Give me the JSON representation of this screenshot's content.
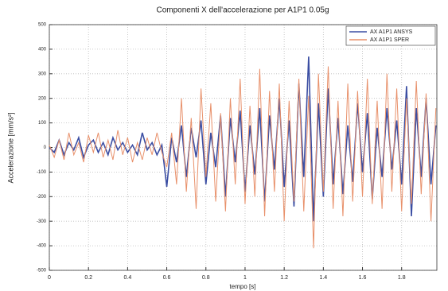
{
  "chart_data": {
    "type": "line",
    "title": "Componenti X dell'accelerazione per A1P1 0.05g",
    "x_label": "tempo [s]",
    "y_label": "Accelerazione [mm/s²]",
    "x": [
      0,
      0.025,
      0.05,
      0.075,
      0.1,
      0.125,
      0.15,
      0.175,
      0.2,
      0.225,
      0.25,
      0.275,
      0.3,
      0.325,
      0.35,
      0.375,
      0.4,
      0.425,
      0.45,
      0.475,
      0.5,
      0.525,
      0.55,
      0.575,
      0.6,
      0.625,
      0.65,
      0.675,
      0.7,
      0.725,
      0.75,
      0.775,
      0.8,
      0.825,
      0.85,
      0.875,
      0.9,
      0.925,
      0.95,
      0.975,
      1,
      1.025,
      1.05,
      1.075,
      1.1,
      1.125,
      1.15,
      1.175,
      1.2,
      1.225,
      1.25,
      1.275,
      1.3,
      1.325,
      1.35,
      1.375,
      1.4,
      1.425,
      1.45,
      1.475,
      1.5,
      1.525,
      1.55,
      1.575,
      1.6,
      1.625,
      1.65,
      1.675,
      1.7,
      1.725,
      1.75,
      1.775,
      1.8,
      1.825,
      1.85,
      1.875,
      1.9,
      1.925,
      1.95,
      1.975
    ],
    "series": [
      {
        "name": "AX A1P1 ANSYS",
        "color": "#3b4ea3",
        "values": [
          0,
          -20,
          30,
          -30,
          20,
          -10,
          40,
          -40,
          10,
          30,
          -20,
          20,
          -30,
          40,
          -10,
          20,
          -20,
          10,
          -30,
          60,
          -10,
          20,
          -30,
          10,
          -160,
          40,
          -60,
          90,
          -120,
          80,
          -40,
          110,
          -150,
          60,
          -80,
          130,
          -200,
          120,
          -60,
          150,
          -180,
          90,
          -110,
          160,
          -220,
          130,
          -90,
          200,
          -160,
          110,
          -240,
          260,
          -120,
          370,
          -300,
          180,
          -200,
          240,
          -150,
          120,
          -190,
          90,
          -140,
          180,
          -100,
          140,
          -210,
          80,
          -120,
          160,
          -90,
          110,
          -150,
          250,
          -280,
          160,
          -120,
          200,
          -150,
          90
        ]
      },
      {
        "name": "AX A1P1 SPER",
        "color": "#e8906a",
        "values": [
          10,
          -40,
          30,
          -50,
          60,
          -30,
          20,
          -60,
          50,
          -20,
          60,
          -40,
          30,
          -50,
          70,
          -30,
          40,
          -60,
          20,
          -50,
          40,
          -30,
          60,
          -20,
          -80,
          60,
          -150,
          200,
          -180,
          120,
          -250,
          240,
          -120,
          180,
          -220,
          140,
          -260,
          200,
          -150,
          280,
          -230,
          170,
          -200,
          320,
          -280,
          230,
          -180,
          260,
          -300,
          190,
          -220,
          280,
          -260,
          210,
          -410,
          300,
          -180,
          330,
          -250,
          190,
          -280,
          260,
          -220,
          230,
          -200,
          280,
          -230,
          190,
          -250,
          300,
          -180,
          240,
          -260,
          200,
          -230,
          270,
          -190,
          220,
          -300,
          160
        ]
      }
    ],
    "xlim": [
      0,
      1.98
    ],
    "ylim": [
      -500,
      500
    ],
    "xticks": [
      0,
      0.2,
      0.4,
      0.6,
      0.8,
      1,
      1.2,
      1.4,
      1.6,
      1.8
    ],
    "yticks": [
      -500,
      -400,
      -300,
      -200,
      -100,
      0,
      100,
      200,
      300,
      400,
      500
    ],
    "grid": true,
    "legend": "top-right"
  }
}
